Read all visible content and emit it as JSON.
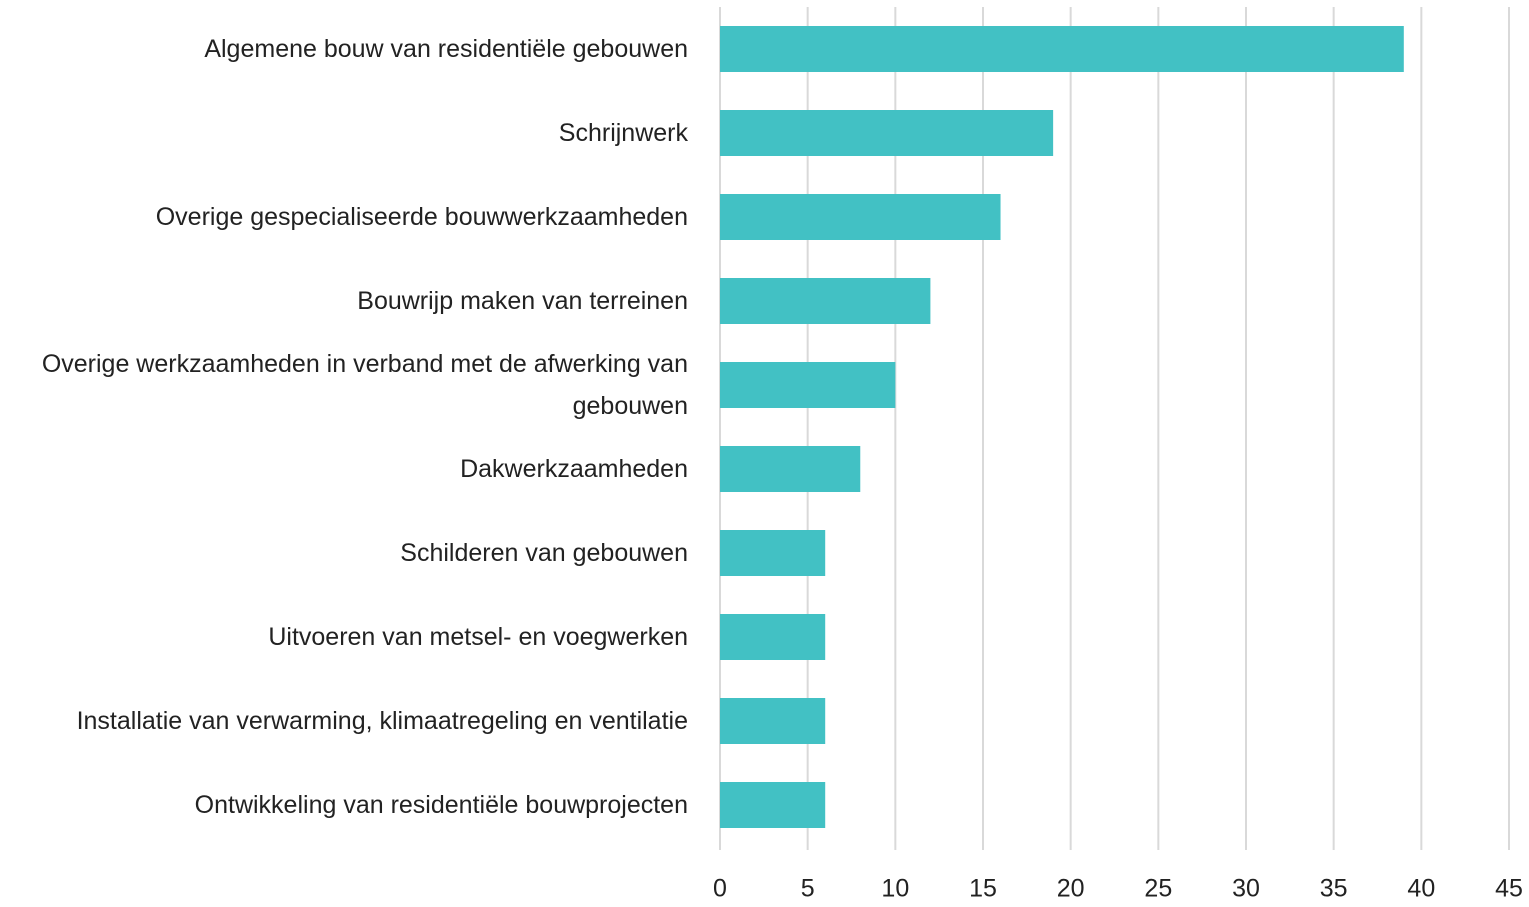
{
  "chart_data": {
    "type": "bar",
    "orientation": "horizontal",
    "categories": [
      "Algemene bouw van residentiële gebouwen",
      "Schrijnwerk",
      "Overige gespecialiseerde bouwwerkzaamheden",
      "Bouwrijp maken van terreinen",
      "Overige werkzaamheden in verband met de afwerking van gebouwen",
      "Dakwerkzaamheden",
      "Schilderen van gebouwen",
      "Uitvoeren van metsel- en voegwerken",
      "Installatie van verwarming, klimaatregeling en ventilatie",
      "Ontwikkeling van residentiële bouwprojecten"
    ],
    "values": [
      39,
      19,
      16,
      12,
      10,
      8,
      6,
      6,
      6,
      6
    ],
    "color": "#42c1c4",
    "xlim": [
      0,
      45
    ],
    "xticks": [
      0,
      5,
      10,
      15,
      20,
      25,
      30,
      35,
      40,
      45
    ],
    "grid": true
  }
}
